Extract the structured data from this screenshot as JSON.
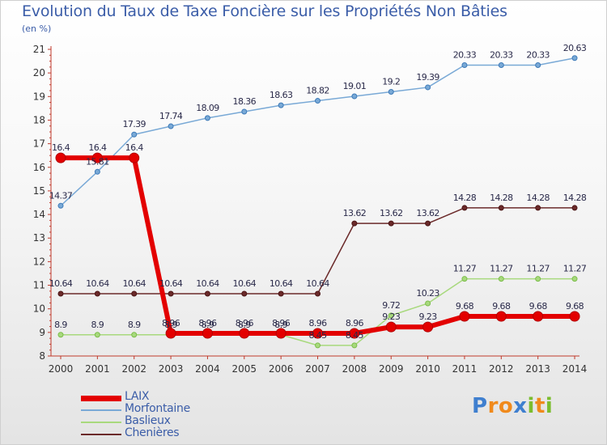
{
  "chart_data": {
    "type": "line",
    "title": "Evolution du Taux de Taxe Foncière sur les Propriétés Non Bâties",
    "ylabel": "(en %)",
    "x": [
      "2000",
      "2001",
      "2002",
      "2003",
      "2004",
      "2005",
      "2006",
      "2007",
      "2008",
      "2009",
      "2010",
      "2011",
      "2012",
      "2013",
      "2014"
    ],
    "ylim": [
      8,
      21
    ],
    "yticks": [
      "8",
      "9",
      "10",
      "11",
      "12",
      "13",
      "14",
      "15",
      "16",
      "17",
      "18",
      "19",
      "20",
      "21"
    ],
    "grid": false,
    "legend_position": "bottom-left",
    "series": [
      {
        "name": "LAIX",
        "color": "#e30000",
        "values": [
          16.4,
          16.4,
          16.4,
          8.96,
          8.96,
          8.96,
          8.96,
          8.96,
          8.96,
          9.23,
          9.23,
          9.68,
          9.68,
          9.68,
          9.68
        ],
        "labels": [
          "16.4",
          "16.4",
          "16.4",
          "8.96",
          "8.96",
          "8.96",
          "8.96",
          "8.96",
          "8.96",
          "9.23",
          "9.23",
          "9.68",
          "9.68",
          "9.68",
          "9.68"
        ]
      },
      {
        "name": "Morfontaine",
        "color": "#79a9d6",
        "values": [
          14.37,
          15.81,
          17.39,
          17.74,
          18.09,
          18.36,
          18.63,
          18.82,
          19.01,
          19.2,
          19.39,
          20.33,
          20.33,
          20.33,
          20.63
        ],
        "labels": [
          "14.37",
          "15.81",
          "17.39",
          "17.74",
          "18.09",
          "18.36",
          "18.63",
          "18.82",
          "19.01",
          "19.2",
          "19.39",
          "20.33",
          "20.33",
          "20.33",
          "20.63"
        ]
      },
      {
        "name": "Baslieux",
        "color": "#a8d97d",
        "values": [
          8.9,
          8.9,
          8.9,
          8.9,
          8.9,
          8.9,
          8.9,
          8.45,
          8.45,
          9.72,
          10.23,
          11.27,
          11.27,
          11.27,
          11.27
        ],
        "labels": [
          "8.9",
          "8.9",
          "8.9",
          "8.9",
          "8.9",
          "8.9",
          "8.9",
          "8.45",
          "8.45",
          "9.72",
          "10.23",
          "11.27",
          "11.27",
          "11.27",
          "11.27"
        ]
      },
      {
        "name": "Chenières",
        "color": "#6b2a2a",
        "values": [
          10.64,
          10.64,
          10.64,
          10.64,
          10.64,
          10.64,
          10.64,
          10.64,
          13.62,
          13.62,
          13.62,
          14.28,
          14.28,
          14.28,
          14.28
        ],
        "labels": [
          "10.64",
          "10.64",
          "10.64",
          "10.64",
          "10.64",
          "10.64",
          "10.64",
          "10.64",
          "13.62",
          "13.62",
          "13.62",
          "14.28",
          "14.28",
          "14.28",
          "14.28"
        ]
      }
    ]
  },
  "logo": {
    "letters": [
      "P",
      "r",
      "o",
      "x",
      "i",
      "t",
      "i"
    ],
    "colors": [
      "#3f7fcf",
      "#f08a1c",
      "#f08a1c",
      "#3f7fcf",
      "#7bbd2e",
      "#f08a1c",
      "#7bbd2e"
    ]
  }
}
